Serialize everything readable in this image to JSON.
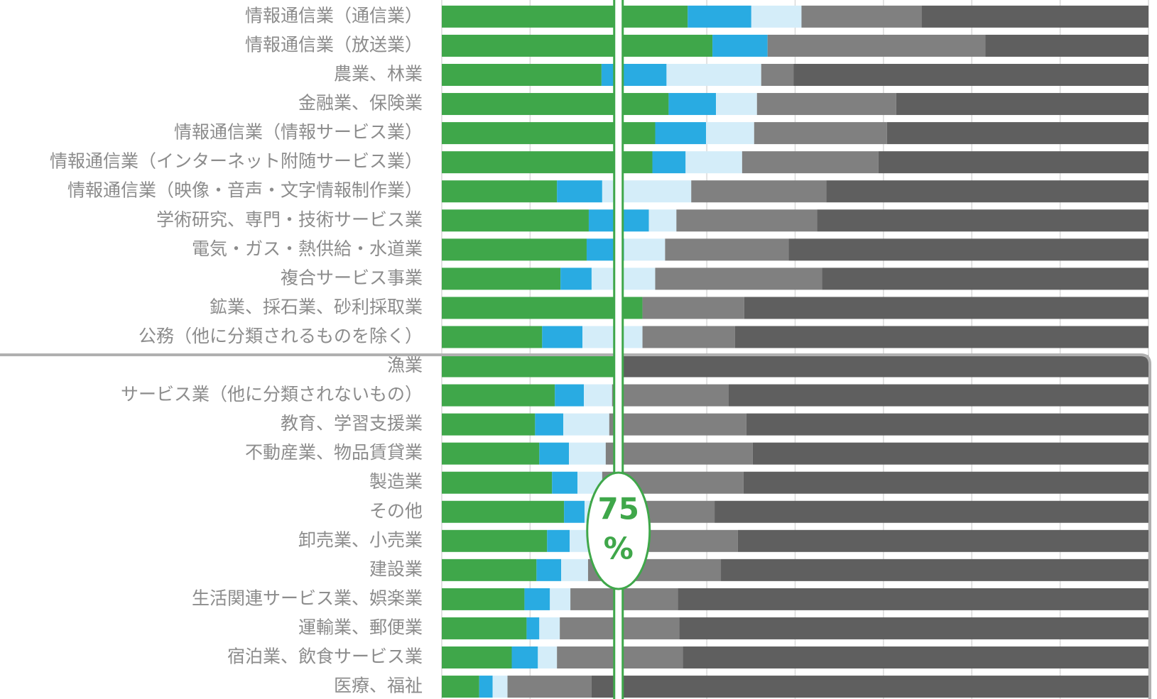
{
  "chart_data": {
    "type": "stacked_barh",
    "categories": [
      "情報通信業（通信業）",
      "情報通信業（放送業）",
      "農業、林業",
      "金融業、保険業",
      "情報通信業（情報サービス業）",
      "情報通信業（インターネット附随サービス業）",
      "情報通信業（映像・音声・文字情報制作業）",
      "学術研究、専門・技術サービス業",
      "電気・ガス・熱供給・水道業",
      "複合サービス事業",
      "鉱業、採石業、砂利採取業",
      "公務（他に分類されるものを除く）",
      "漁業",
      "サービス業（他に分類されないもの）",
      "教育、学習支援業",
      "不動産業、物品賃貸業",
      "製造業",
      "その他",
      "卸売業、小売業",
      "建設業",
      "生活関連サービス業、娯楽業",
      "運輸業、郵便業",
      "宿泊業、飲食サービス業",
      "医療、福祉"
    ],
    "series": [
      {
        "color": "#3fa74a",
        "values": [
          34.8,
          38.3,
          22.6,
          32.1,
          30.2,
          29.8,
          16.3,
          20.8,
          20.5,
          16.8,
          28.4,
          14.2,
          25.2,
          16.0,
          13.2,
          13.8,
          15.6,
          17.3,
          14.9,
          13.4,
          11.7,
          12.0,
          9.9,
          5.3
        ]
      },
      {
        "color": "#29abe2",
        "values": [
          9.0,
          7.8,
          9.2,
          6.7,
          7.2,
          4.7,
          6.4,
          8.5,
          5.3,
          4.4,
          0,
          5.7,
          0,
          4.1,
          4.0,
          4.2,
          3.6,
          2.9,
          3.2,
          3.5,
          3.6,
          1.8,
          3.7,
          1.9
        ]
      },
      {
        "color": "#d4edf9",
        "values": [
          7.1,
          0,
          13.4,
          5.8,
          6.8,
          8.0,
          12.6,
          3.9,
          5.8,
          9.0,
          0,
          8.5,
          0,
          4.0,
          6.5,
          5.2,
          3.5,
          0.8,
          2.9,
          3.8,
          2.9,
          2.9,
          2.7,
          2.1
        ]
      },
      {
        "color": "#808080",
        "values": [
          17.0,
          30.8,
          4.6,
          19.7,
          18.8,
          19.3,
          19.1,
          19.9,
          17.5,
          23.6,
          14.4,
          13.1,
          0,
          16.5,
          19.4,
          20.8,
          20.0,
          17.6,
          20.9,
          18.8,
          15.2,
          16.9,
          17.8,
          11.9
        ]
      },
      {
        "color": "#5f5f5f",
        "values": [
          32.1,
          23.1,
          50.2,
          35.7,
          37.0,
          38.2,
          45.6,
          46.9,
          50.9,
          46.2,
          57.2,
          58.5,
          74.8,
          59.4,
          56.9,
          56.0,
          57.3,
          61.4,
          58.1,
          60.5,
          66.6,
          66.4,
          65.9,
          78.8
        ]
      }
    ],
    "xlim": [
      0,
      100
    ],
    "xticks": [
      0,
      12.5,
      25,
      37.5,
      50,
      62.5,
      75,
      87.5,
      100
    ],
    "grid": true,
    "reference_line": {
      "value": 75,
      "label": "75",
      "unit": "%",
      "color": "#3fa74a"
    }
  }
}
